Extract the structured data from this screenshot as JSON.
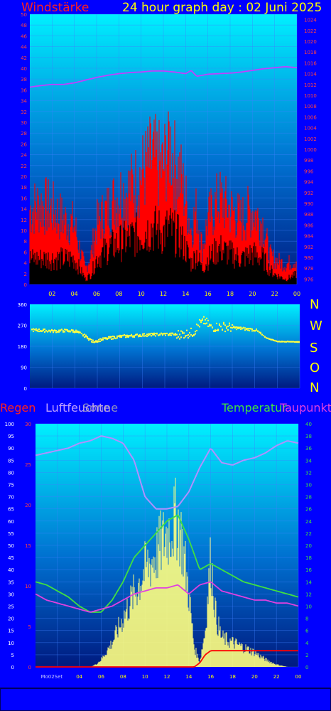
{
  "header": {
    "left_title": "Windstärke",
    "right_title": "24 hour graph day : 02 Juni 2025"
  },
  "colors": {
    "background": "#0000ff",
    "plot_gradient_top": "#00f0ff",
    "plot_gradient_bottom": "#001a80",
    "wind_gust": "#ff0000",
    "wind_avg": "#000000",
    "pressure": "#c040ff",
    "direction": "#ffff40",
    "regen": "#ff0000",
    "luftfeuchte": "#b090ff",
    "sonne": "#ffff80",
    "temperatur": "#40e040",
    "taupunkt": "#e040e0",
    "label_red": "#ff2020",
    "label_yellow": "#ffff00"
  },
  "chart_data": [
    {
      "id": "wind",
      "type": "area",
      "title": "Windstärke",
      "left_axis": {
        "min": 0,
        "max": 50,
        "ticks": [
          "0",
          "2",
          "4",
          "6",
          "8",
          "10",
          "12",
          "14",
          "16",
          "18",
          "20",
          "22",
          "24",
          "26",
          "28",
          "30",
          "32",
          "34",
          "36",
          "38",
          "40",
          "42",
          "44",
          "46",
          "48",
          "50"
        ]
      },
      "right_axis": {
        "min": 975,
        "max": 1025,
        "ticks": [
          "976",
          "978",
          "980",
          "982",
          "984",
          "986",
          "988",
          "990",
          "992",
          "994",
          "996",
          "998",
          "1000",
          "1002",
          "1004",
          "1006",
          "1008",
          "1010",
          "1012",
          "1014",
          "1016",
          "1018",
          "1020",
          "1022",
          "1024"
        ]
      },
      "x_ticks": [
        "02",
        "04",
        "06",
        "08",
        "10",
        "12",
        "14",
        "16",
        "18",
        "20",
        "22",
        "00"
      ],
      "x_range_hours": [
        0,
        24
      ],
      "grid": true,
      "series": [
        {
          "name": "gust",
          "color": "#ff0000",
          "x": [
            0,
            1,
            2,
            3,
            4,
            4.5,
            5,
            5.5,
            6,
            7,
            8,
            9,
            10,
            11,
            12,
            12.5,
            13,
            13.5,
            14,
            14.5,
            15,
            15.5,
            16,
            17,
            18,
            19,
            20,
            21,
            21.5,
            22,
            23,
            24
          ],
          "values": [
            15,
            16,
            15,
            13,
            12,
            7,
            3,
            6,
            12,
            15,
            18,
            19,
            22,
            25,
            23,
            29,
            24,
            22,
            17,
            11,
            15,
            7,
            13,
            17,
            15,
            13,
            15,
            12,
            6,
            5,
            4,
            5
          ]
        },
        {
          "name": "average",
          "color": "#000000",
          "x": [
            0,
            1,
            2,
            3,
            4,
            4.5,
            5,
            5.5,
            6,
            7,
            8,
            9,
            10,
            11,
            12,
            12.5,
            13,
            13.5,
            14,
            14.5,
            15,
            15.5,
            16,
            17,
            18,
            19,
            20,
            21,
            21.5,
            22,
            23,
            24
          ],
          "values": [
            5,
            5,
            5,
            5,
            5,
            3,
            1,
            2,
            5,
            7,
            8,
            9,
            10,
            11,
            10,
            11,
            10,
            9,
            7,
            4,
            6,
            3,
            5,
            7,
            6,
            5,
            6,
            5,
            3,
            2,
            1,
            2
          ]
        },
        {
          "name": "pressure",
          "color": "#c040ff",
          "axis": "right",
          "x": [
            0,
            1,
            2,
            3,
            4,
            5,
            6,
            7,
            8,
            9,
            10,
            11,
            12,
            13,
            14,
            14.5,
            15,
            16,
            17,
            18,
            19,
            20,
            21,
            22,
            23,
            24
          ],
          "values": [
            1011.5,
            1011.8,
            1012,
            1012,
            1012.3,
            1012.8,
            1013.3,
            1013.7,
            1014,
            1014.2,
            1014.3,
            1014.5,
            1014.5,
            1014.3,
            1014,
            1014.6,
            1013.5,
            1013.9,
            1014,
            1014.1,
            1014.3,
            1014.6,
            1014.9,
            1015.1,
            1015.3,
            1015.1
          ]
        }
      ]
    },
    {
      "id": "direction",
      "type": "scatter",
      "left_axis": {
        "min": 0,
        "max": 360,
        "ticks": [
          "0",
          "90",
          "180",
          "270",
          "360"
        ]
      },
      "compass_labels": [
        "N",
        "W",
        "S",
        "O",
        "N"
      ],
      "x_range_hours": [
        0,
        24
      ],
      "grid": true,
      "series": [
        {
          "name": "direction",
          "color": "#ffff40",
          "x": [
            0,
            1,
            2,
            3,
            4,
            5,
            5.5,
            6,
            7,
            8,
            9,
            10,
            11,
            12,
            13,
            14,
            14.5,
            15,
            15.5,
            16,
            17,
            18,
            19,
            20,
            21,
            22,
            23,
            24
          ],
          "values": [
            250,
            248,
            245,
            247,
            245,
            220,
            200,
            205,
            215,
            222,
            225,
            228,
            230,
            232,
            230,
            235,
            240,
            275,
            290,
            260,
            265,
            260,
            255,
            250,
            215,
            200,
            200,
            198
          ]
        }
      ]
    },
    {
      "id": "climate",
      "type": "line",
      "legend": [
        "Regen",
        "Luftfeuchte",
        "Sonne",
        "Temperatur",
        "Taupunkt"
      ],
      "left_axis": {
        "min": 0,
        "max": 100,
        "ticks": [
          "0",
          "5",
          "10",
          "15",
          "20",
          "25",
          "30",
          "35",
          "40",
          "45",
          "50",
          "55",
          "60",
          "65",
          "70",
          "75",
          "80",
          "85",
          "90",
          "95",
          "100"
        ]
      },
      "mid_axis": {
        "min": 0,
        "max": 30,
        "ticks": [
          "0",
          "5",
          "10",
          "15",
          "20",
          "25",
          "30"
        ]
      },
      "right_axis": {
        "min": 0,
        "max": 40,
        "ticks": [
          "0",
          "2",
          "4",
          "6",
          "8",
          "10",
          "12",
          "14",
          "16",
          "18",
          "20",
          "22",
          "24",
          "26",
          "28",
          "30",
          "32",
          "34",
          "36",
          "38",
          "40"
        ]
      },
      "x_ticks": [
        "Mo02Set",
        "04",
        "06",
        "08",
        "10",
        "12",
        "14",
        "16",
        "18",
        "20",
        "22",
        "00"
      ],
      "x_range_hours": [
        0,
        24
      ],
      "grid": true,
      "series": [
        {
          "name": "Luftfeuchte",
          "color": "#b090ff",
          "x": [
            0,
            1,
            2,
            3,
            4,
            5,
            6,
            7,
            8,
            9,
            10,
            11,
            12,
            13,
            14,
            15,
            16,
            17,
            18,
            19,
            20,
            21,
            22,
            23,
            24
          ],
          "values": [
            87,
            88,
            89,
            90,
            92,
            93,
            95,
            94,
            92,
            85,
            70,
            65,
            65,
            66,
            72,
            82,
            90,
            84,
            83,
            85,
            86,
            88,
            91,
            93,
            92
          ]
        },
        {
          "name": "Sonne",
          "color": "#ffff80",
          "axis": "left",
          "x": [
            0,
            5,
            5.5,
            6,
            7,
            8,
            9,
            10,
            11,
            12,
            12.5,
            13,
            13.5,
            14,
            14.5,
            15,
            15.5,
            16,
            16.5,
            17,
            18,
            19,
            20,
            21,
            22,
            23,
            24
          ],
          "values": [
            0,
            0,
            1,
            3,
            10,
            20,
            30,
            40,
            46,
            55,
            58,
            62,
            48,
            30,
            8,
            2,
            15,
            45,
            20,
            12,
            10,
            8,
            6,
            3,
            1,
            0,
            0
          ]
        },
        {
          "name": "Temperatur",
          "color": "#40e040",
          "axis": "right",
          "x": [
            0,
            1,
            2,
            3,
            4,
            5,
            6,
            7,
            8,
            9,
            10,
            11,
            12,
            13,
            14,
            15,
            16,
            17,
            18,
            19,
            20,
            21,
            22,
            23,
            24
          ],
          "values": [
            14,
            13.5,
            12.5,
            11.5,
            10,
            9,
            9,
            11,
            14,
            18,
            20,
            22,
            24,
            25,
            21,
            16,
            17,
            16,
            15,
            14,
            13.5,
            13,
            12.5,
            12,
            11.5
          ]
        },
        {
          "name": "Taupunkt",
          "color": "#e040e0",
          "axis": "right",
          "x": [
            0,
            1,
            2,
            3,
            4,
            5,
            6,
            7,
            8,
            9,
            10,
            11,
            12,
            13,
            14,
            15,
            16,
            17,
            18,
            19,
            20,
            21,
            22,
            23,
            24
          ],
          "values": [
            12,
            11,
            10.5,
            10,
            9.5,
            9,
            9.5,
            10,
            11,
            12,
            12.5,
            13,
            13,
            13.5,
            12,
            13.5,
            14,
            12.5,
            12,
            11.5,
            11,
            11,
            10.5,
            10.5,
            10
          ]
        },
        {
          "name": "Regen",
          "color": "#ff0000",
          "axis": "mid",
          "x": [
            0,
            14.5,
            15,
            15.5,
            16,
            24
          ],
          "values": [
            0,
            0,
            0.5,
            1.5,
            2,
            2
          ]
        }
      ]
    }
  ]
}
